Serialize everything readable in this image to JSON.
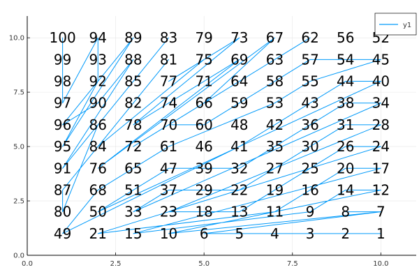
{
  "chart_data": {
    "type": "line",
    "title": "",
    "xlabel": "",
    "ylabel": "",
    "xlim": [
      0,
      11
    ],
    "ylim": [
      0,
      11
    ],
    "x_ticks": [
      0,
      2.5,
      5,
      7.5,
      10
    ],
    "x_tick_labels": [
      "0.0",
      "2.5",
      "5.0",
      "7.5",
      "10.0"
    ],
    "y_ticks": [
      0,
      2.5,
      5,
      7.5,
      10
    ],
    "y_tick_labels": [
      "0.0",
      "2.5",
      "5.0",
      "7.5",
      "10.0"
    ],
    "grid": true,
    "legend": {
      "position": "top-right",
      "entries": [
        "y1"
      ]
    },
    "series_color": "#009AFA",
    "series": [
      {
        "name": "y1",
        "points": [
          [
            10,
            1
          ],
          [
            9,
            1
          ],
          [
            8,
            1
          ],
          [
            7,
            1
          ],
          [
            6,
            1
          ],
          [
            5,
            1
          ],
          [
            10,
            2
          ],
          [
            9,
            2
          ],
          [
            10,
            2
          ],
          [
            4,
            1
          ],
          [
            10,
            3
          ],
          [
            9,
            3
          ],
          [
            8,
            2
          ],
          [
            3,
            1
          ],
          [
            10,
            4
          ],
          [
            9,
            4
          ],
          [
            8,
            3
          ],
          [
            7,
            2
          ],
          [
            2,
            1
          ],
          [
            10,
            5
          ],
          [
            9,
            5
          ],
          [
            8,
            4
          ],
          [
            7,
            3
          ],
          [
            6,
            2
          ],
          [
            5,
            2
          ],
          [
            4,
            2
          ],
          [
            10,
            6
          ],
          [
            9,
            6
          ],
          [
            8,
            5
          ],
          [
            7,
            4
          ],
          [
            6,
            3
          ],
          [
            5,
            3
          ],
          [
            4,
            3
          ],
          [
            3,
            2
          ],
          [
            10,
            7
          ],
          [
            9,
            7
          ],
          [
            8,
            6
          ],
          [
            7,
            5
          ],
          [
            6,
            4
          ],
          [
            5,
            4
          ],
          [
            4,
            4
          ],
          [
            3,
            3
          ],
          [
            2,
            2
          ],
          [
            10,
            8
          ],
          [
            9,
            8
          ],
          [
            8,
            7
          ],
          [
            7,
            6
          ],
          [
            6,
            5
          ],
          [
            1,
            1
          ],
          [
            2,
            3
          ],
          [
            3,
            4
          ],
          [
            4,
            5
          ],
          [
            7,
            7
          ],
          [
            8,
            8
          ],
          [
            10,
            9
          ],
          [
            9,
            9
          ],
          [
            8,
            9
          ],
          [
            7,
            8
          ],
          [
            6,
            7
          ],
          [
            5,
            6
          ],
          [
            4,
            6
          ],
          [
            8,
            10
          ],
          [
            7,
            9
          ],
          [
            6,
            8
          ],
          [
            3,
            5
          ],
          [
            5,
            7
          ],
          [
            7,
            10
          ],
          [
            2,
            4
          ],
          [
            6,
            9
          ],
          [
            4,
            7
          ],
          [
            5,
            8
          ],
          [
            3,
            6
          ],
          [
            6,
            10
          ],
          [
            4,
            8
          ],
          [
            5,
            9
          ],
          [
            2,
            5
          ],
          [
            4,
            9
          ],
          [
            3,
            7
          ],
          [
            1,
            3
          ],
          [
            1,
            2
          ],
          [
            2,
            6
          ],
          [
            4,
            10
          ],
          [
            3,
            8
          ],
          [
            1,
            4
          ],
          [
            3,
            9
          ],
          [
            2,
            7
          ],
          [
            1,
            6
          ],
          [
            3,
            10
          ],
          [
            1,
            5
          ],
          [
            2,
            8
          ],
          [
            2,
            9
          ],
          [
            2,
            10
          ],
          [
            1,
            7
          ],
          [
            1,
            10
          ],
          [
            1,
            8
          ],
          [
            1,
            9
          ],
          [
            1,
            10
          ]
        ]
      }
    ],
    "point_labels": [
      {
        "x": 1,
        "y": 10,
        "label": "100"
      },
      {
        "x": 2,
        "y": 10,
        "label": "94"
      },
      {
        "x": 3,
        "y": 10,
        "label": "89"
      },
      {
        "x": 4,
        "y": 10,
        "label": "83"
      },
      {
        "x": 5,
        "y": 10,
        "label": "79"
      },
      {
        "x": 6,
        "y": 10,
        "label": "73"
      },
      {
        "x": 7,
        "y": 10,
        "label": "67"
      },
      {
        "x": 8,
        "y": 10,
        "label": "62"
      },
      {
        "x": 9,
        "y": 10,
        "label": "56"
      },
      {
        "x": 10,
        "y": 10,
        "label": "52"
      },
      {
        "x": 1,
        "y": 9,
        "label": "99"
      },
      {
        "x": 2,
        "y": 9,
        "label": "93"
      },
      {
        "x": 3,
        "y": 9,
        "label": "88"
      },
      {
        "x": 4,
        "y": 9,
        "label": "81"
      },
      {
        "x": 5,
        "y": 9,
        "label": "75"
      },
      {
        "x": 6,
        "y": 9,
        "label": "69"
      },
      {
        "x": 7,
        "y": 9,
        "label": "63"
      },
      {
        "x": 8,
        "y": 9,
        "label": "57"
      },
      {
        "x": 9,
        "y": 9,
        "label": "54"
      },
      {
        "x": 10,
        "y": 9,
        "label": "45"
      },
      {
        "x": 1,
        "y": 8,
        "label": "98"
      },
      {
        "x": 2,
        "y": 8,
        "label": "92"
      },
      {
        "x": 3,
        "y": 8,
        "label": "85"
      },
      {
        "x": 4,
        "y": 8,
        "label": "77"
      },
      {
        "x": 5,
        "y": 8,
        "label": "71"
      },
      {
        "x": 6,
        "y": 8,
        "label": "64"
      },
      {
        "x": 7,
        "y": 8,
        "label": "58"
      },
      {
        "x": 8,
        "y": 8,
        "label": "55"
      },
      {
        "x": 9,
        "y": 8,
        "label": "44"
      },
      {
        "x": 10,
        "y": 8,
        "label": "40"
      },
      {
        "x": 1,
        "y": 7,
        "label": "97"
      },
      {
        "x": 2,
        "y": 7,
        "label": "90"
      },
      {
        "x": 3,
        "y": 7,
        "label": "82"
      },
      {
        "x": 4,
        "y": 7,
        "label": "74"
      },
      {
        "x": 5,
        "y": 7,
        "label": "66"
      },
      {
        "x": 6,
        "y": 7,
        "label": "59"
      },
      {
        "x": 7,
        "y": 7,
        "label": "53"
      },
      {
        "x": 8,
        "y": 7,
        "label": "43"
      },
      {
        "x": 9,
        "y": 7,
        "label": "38"
      },
      {
        "x": 10,
        "y": 7,
        "label": "34"
      },
      {
        "x": 1,
        "y": 6,
        "label": "96"
      },
      {
        "x": 2,
        "y": 6,
        "label": "86"
      },
      {
        "x": 3,
        "y": 6,
        "label": "78"
      },
      {
        "x": 4,
        "y": 6,
        "label": "70"
      },
      {
        "x": 5,
        "y": 6,
        "label": "60"
      },
      {
        "x": 6,
        "y": 6,
        "label": "48"
      },
      {
        "x": 7,
        "y": 6,
        "label": "42"
      },
      {
        "x": 8,
        "y": 6,
        "label": "36"
      },
      {
        "x": 9,
        "y": 6,
        "label": "31"
      },
      {
        "x": 10,
        "y": 6,
        "label": "28"
      },
      {
        "x": 1,
        "y": 5,
        "label": "95"
      },
      {
        "x": 2,
        "y": 5,
        "label": "84"
      },
      {
        "x": 3,
        "y": 5,
        "label": "72"
      },
      {
        "x": 4,
        "y": 5,
        "label": "61"
      },
      {
        "x": 5,
        "y": 5,
        "label": "46"
      },
      {
        "x": 6,
        "y": 5,
        "label": "41"
      },
      {
        "x": 7,
        "y": 5,
        "label": "35"
      },
      {
        "x": 8,
        "y": 5,
        "label": "30"
      },
      {
        "x": 9,
        "y": 5,
        "label": "26"
      },
      {
        "x": 10,
        "y": 5,
        "label": "24"
      },
      {
        "x": 1,
        "y": 4,
        "label": "91"
      },
      {
        "x": 2,
        "y": 4,
        "label": "76"
      },
      {
        "x": 3,
        "y": 4,
        "label": "65"
      },
      {
        "x": 4,
        "y": 4,
        "label": "47"
      },
      {
        "x": 5,
        "y": 4,
        "label": "39"
      },
      {
        "x": 6,
        "y": 4,
        "label": "32"
      },
      {
        "x": 7,
        "y": 4,
        "label": "27"
      },
      {
        "x": 8,
        "y": 4,
        "label": "25"
      },
      {
        "x": 9,
        "y": 4,
        "label": "20"
      },
      {
        "x": 10,
        "y": 4,
        "label": "17"
      },
      {
        "x": 1,
        "y": 3,
        "label": "87"
      },
      {
        "x": 2,
        "y": 3,
        "label": "68"
      },
      {
        "x": 3,
        "y": 3,
        "label": "51"
      },
      {
        "x": 4,
        "y": 3,
        "label": "37"
      },
      {
        "x": 5,
        "y": 3,
        "label": "29"
      },
      {
        "x": 6,
        "y": 3,
        "label": "22"
      },
      {
        "x": 7,
        "y": 3,
        "label": "19"
      },
      {
        "x": 8,
        "y": 3,
        "label": "16"
      },
      {
        "x": 9,
        "y": 3,
        "label": "14"
      },
      {
        "x": 10,
        "y": 3,
        "label": "12"
      },
      {
        "x": 1,
        "y": 2,
        "label": "80"
      },
      {
        "x": 2,
        "y": 2,
        "label": "50"
      },
      {
        "x": 3,
        "y": 2,
        "label": "33"
      },
      {
        "x": 4,
        "y": 2,
        "label": "23"
      },
      {
        "x": 5,
        "y": 2,
        "label": "18"
      },
      {
        "x": 6,
        "y": 2,
        "label": "13"
      },
      {
        "x": 7,
        "y": 2,
        "label": "11"
      },
      {
        "x": 8,
        "y": 2,
        "label": "9"
      },
      {
        "x": 9,
        "y": 2,
        "label": "8"
      },
      {
        "x": 10,
        "y": 2,
        "label": "7"
      },
      {
        "x": 1,
        "y": 1,
        "label": "49"
      },
      {
        "x": 2,
        "y": 1,
        "label": "21"
      },
      {
        "x": 3,
        "y": 1,
        "label": "15"
      },
      {
        "x": 4,
        "y": 1,
        "label": "10"
      },
      {
        "x": 5,
        "y": 1,
        "label": "6"
      },
      {
        "x": 6,
        "y": 1,
        "label": "5"
      },
      {
        "x": 7,
        "y": 1,
        "label": "4"
      },
      {
        "x": 8,
        "y": 1,
        "label": "3"
      },
      {
        "x": 9,
        "y": 1,
        "label": "2"
      },
      {
        "x": 10,
        "y": 1,
        "label": "1"
      }
    ]
  }
}
